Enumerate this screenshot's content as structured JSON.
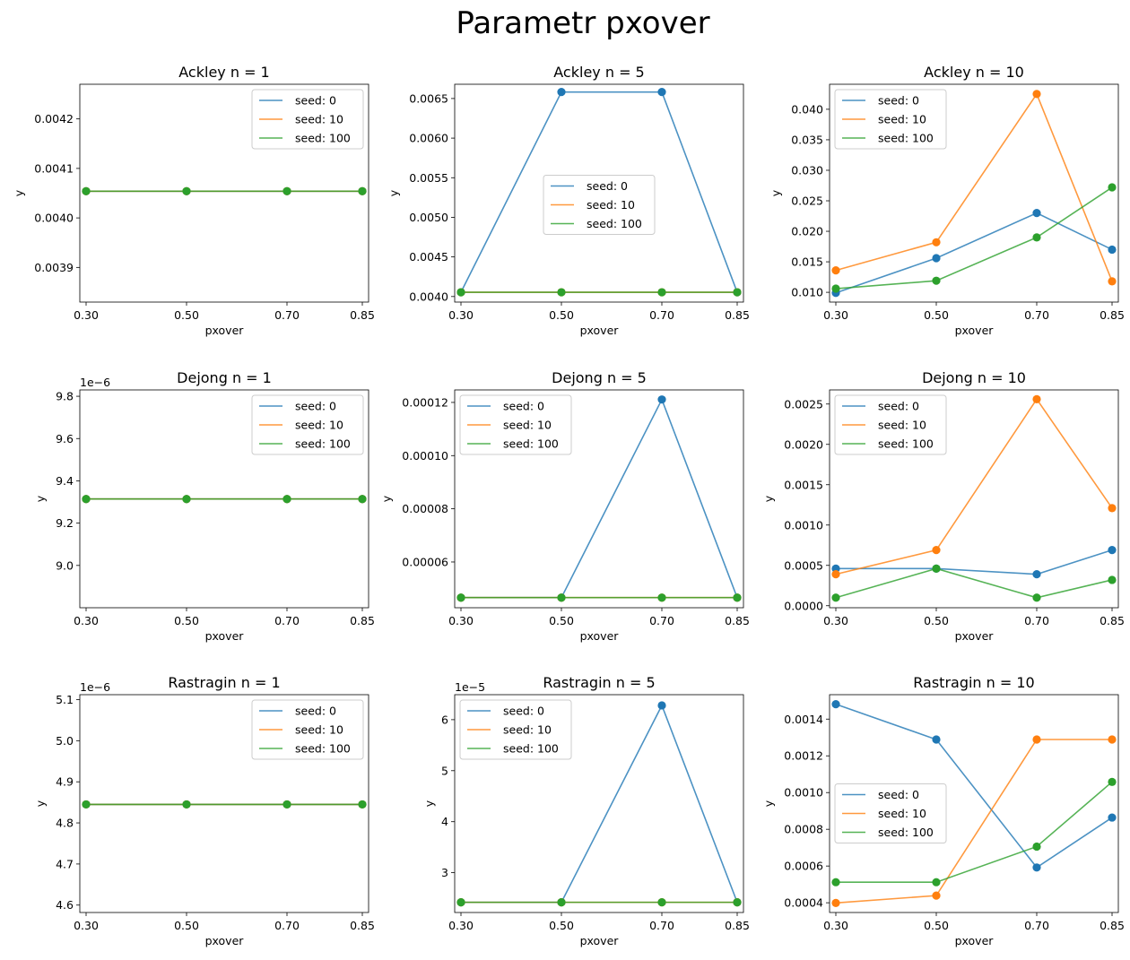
{
  "figure": {
    "title": "Parametr pxover"
  },
  "colors": {
    "seed0": "#1f77b4",
    "seed10": "#ff7f0e",
    "seed100": "#2ca02c"
  },
  "chart_data": [
    {
      "type": "line",
      "title": "Ackley n = 1",
      "xlabel": "pxover",
      "ylabel": "y",
      "x": [
        0.3,
        0.5,
        0.7,
        0.85
      ],
      "x_ticks": [
        "0.30",
        "0.50",
        "0.70",
        "0.85"
      ],
      "ylim": [
        0.00383,
        0.00427
      ],
      "y_ticks": [
        0.0039,
        0.004,
        0.0041,
        0.0042
      ],
      "y_tick_labels": [
        "0.0039",
        "0.0040",
        "0.0041",
        "0.0042"
      ],
      "offset": "",
      "legend_loc": "upper-right",
      "series": [
        {
          "name": "seed: 0",
          "values": [
            0.004054,
            0.004054,
            0.004054,
            0.004054
          ]
        },
        {
          "name": "seed: 10",
          "values": [
            0.004054,
            0.004054,
            0.004054,
            0.004054
          ]
        },
        {
          "name": "seed: 100",
          "values": [
            0.004054,
            0.004054,
            0.004054,
            0.004054
          ]
        }
      ]
    },
    {
      "type": "line",
      "title": "Ackley n = 5",
      "xlabel": "pxover",
      "ylabel": "y",
      "x": [
        0.3,
        0.5,
        0.7,
        0.85
      ],
      "x_ticks": [
        "0.30",
        "0.50",
        "0.70",
        "0.85"
      ],
      "ylim": [
        0.00393,
        0.00668
      ],
      "y_ticks": [
        0.004,
        0.0045,
        0.005,
        0.0055,
        0.006,
        0.0065
      ],
      "y_tick_labels": [
        "0.0040",
        "0.0045",
        "0.0050",
        "0.0055",
        "0.0060",
        "0.0065"
      ],
      "offset": "",
      "legend_loc": "center",
      "series": [
        {
          "name": "seed: 0",
          "values": [
            0.004054,
            0.006582,
            0.006582,
            0.004054
          ]
        },
        {
          "name": "seed: 10",
          "values": [
            0.004054,
            0.004054,
            0.004054,
            0.004054
          ]
        },
        {
          "name": "seed: 100",
          "values": [
            0.004054,
            0.004054,
            0.004054,
            0.004054
          ]
        }
      ]
    },
    {
      "type": "line",
      "title": "Ackley n = 10",
      "xlabel": "pxover",
      "ylabel": "y",
      "x": [
        0.3,
        0.5,
        0.7,
        0.85
      ],
      "x_ticks": [
        "0.30",
        "0.50",
        "0.70",
        "0.85"
      ],
      "ylim": [
        0.0084,
        0.0441
      ],
      "y_ticks": [
        0.01,
        0.015,
        0.02,
        0.025,
        0.03,
        0.035,
        0.04
      ],
      "y_tick_labels": [
        "0.010",
        "0.015",
        "0.020",
        "0.025",
        "0.030",
        "0.035",
        "0.040"
      ],
      "offset": "",
      "legend_loc": "upper-left",
      "series": [
        {
          "name": "seed: 0",
          "values": [
            0.0099,
            0.0156,
            0.023,
            0.017
          ]
        },
        {
          "name": "seed: 10",
          "values": [
            0.0136,
            0.0182,
            0.0425,
            0.0118
          ]
        },
        {
          "name": "seed: 100",
          "values": [
            0.0106,
            0.0119,
            0.019,
            0.0272
          ]
        }
      ]
    },
    {
      "type": "line",
      "title": "Dejong n = 1",
      "xlabel": "pxover",
      "ylabel": "y",
      "x": [
        0.3,
        0.5,
        0.7,
        0.85
      ],
      "x_ticks": [
        "0.30",
        "0.50",
        "0.70",
        "0.85"
      ],
      "ylim": [
        8.8e-06,
        9.83e-06
      ],
      "y_ticks": [
        9e-06,
        9.2e-06,
        9.4e-06,
        9.6e-06,
        9.8e-06
      ],
      "y_tick_labels": [
        "9.0",
        "9.2",
        "9.4",
        "9.6",
        "9.8"
      ],
      "offset": "1e−6",
      "legend_loc": "upper-right",
      "series": [
        {
          "name": "seed: 0",
          "values": [
            9.314e-06,
            9.314e-06,
            9.314e-06,
            9.314e-06
          ]
        },
        {
          "name": "seed: 10",
          "values": [
            9.314e-06,
            9.314e-06,
            9.314e-06,
            9.314e-06
          ]
        },
        {
          "name": "seed: 100",
          "values": [
            9.314e-06,
            9.314e-06,
            9.314e-06,
            9.314e-06
          ]
        }
      ]
    },
    {
      "type": "line",
      "title": "Dejong n = 5",
      "xlabel": "pxover",
      "ylabel": "y",
      "x": [
        0.3,
        0.5,
        0.7,
        0.85
      ],
      "x_ticks": [
        "0.30",
        "0.50",
        "0.70",
        "0.85"
      ],
      "ylim": [
        4.28e-05,
        0.0001247
      ],
      "y_ticks": [
        6e-05,
        8e-05,
        0.0001,
        0.00012
      ],
      "y_tick_labels": [
        "0.00006",
        "0.00008",
        "0.00010",
        "0.00012"
      ],
      "offset": "",
      "legend_loc": "upper-left",
      "series": [
        {
          "name": "seed: 0",
          "values": [
            4.66e-05,
            4.66e-05,
            0.0001211,
            4.66e-05
          ]
        },
        {
          "name": "seed: 10",
          "values": [
            4.66e-05,
            4.66e-05,
            4.66e-05,
            4.66e-05
          ]
        },
        {
          "name": "seed: 100",
          "values": [
            4.66e-05,
            4.66e-05,
            4.66e-05,
            4.66e-05
          ]
        }
      ]
    },
    {
      "type": "line",
      "title": "Dejong n = 10",
      "xlabel": "pxover",
      "ylabel": "y",
      "x": [
        0.3,
        0.5,
        0.7,
        0.85
      ],
      "x_ticks": [
        "0.30",
        "0.50",
        "0.70",
        "0.85"
      ],
      "ylim": [
        -2.5e-05,
        0.002675
      ],
      "y_ticks": [
        0.0,
        0.0005,
        0.001,
        0.0015,
        0.002,
        0.0025
      ],
      "y_tick_labels": [
        "0.0000",
        "0.0005",
        "0.0010",
        "0.0015",
        "0.0020",
        "0.0025"
      ],
      "offset": "",
      "legend_loc": "upper-left",
      "series": [
        {
          "name": "seed: 0",
          "values": [
            0.00046,
            0.00046,
            0.00039,
            0.00069
          ]
        },
        {
          "name": "seed: 10",
          "values": [
            0.00039,
            0.00069,
            0.00256,
            0.00121
          ]
        },
        {
          "name": "seed: 100",
          "values": [
            0.0001,
            0.00046,
            0.0001,
            0.00032
          ]
        }
      ]
    },
    {
      "type": "line",
      "title": "Rastragin n = 1",
      "xlabel": "pxover",
      "ylabel": "y",
      "x": [
        0.3,
        0.5,
        0.7,
        0.85
      ],
      "x_ticks": [
        "0.30",
        "0.50",
        "0.70",
        "0.85"
      ],
      "ylim": [
        4.582e-06,
        5.112e-06
      ],
      "y_ticks": [
        4.6e-06,
        4.7e-06,
        4.8e-06,
        4.9e-06,
        5e-06,
        5.1e-06
      ],
      "y_tick_labels": [
        "4.6",
        "4.7",
        "4.8",
        "4.9",
        "5.0",
        "5.1"
      ],
      "offset": "1e−6",
      "legend_loc": "upper-right",
      "series": [
        {
          "name": "seed: 0",
          "values": [
            4.845e-06,
            4.845e-06,
            4.845e-06,
            4.845e-06
          ]
        },
        {
          "name": "seed: 10",
          "values": [
            4.845e-06,
            4.845e-06,
            4.845e-06,
            4.845e-06
          ]
        },
        {
          "name": "seed: 100",
          "values": [
            4.845e-06,
            4.845e-06,
            4.845e-06,
            4.845e-06
          ]
        }
      ]
    },
    {
      "type": "line",
      "title": "Rastragin n = 5",
      "xlabel": "pxover",
      "ylabel": "y",
      "x": [
        0.3,
        0.5,
        0.7,
        0.85
      ],
      "x_ticks": [
        "0.30",
        "0.50",
        "0.70",
        "0.85"
      ],
      "ylim": [
        2.22e-05,
        6.49e-05
      ],
      "y_ticks": [
        3e-05,
        4e-05,
        5e-05,
        6e-05
      ],
      "y_tick_labels": [
        "3",
        "4",
        "5",
        "6"
      ],
      "offset": "1e−5",
      "legend_loc": "upper-left",
      "series": [
        {
          "name": "seed: 0",
          "values": [
            2.42e-05,
            2.42e-05,
            6.28e-05,
            2.42e-05
          ]
        },
        {
          "name": "seed: 10",
          "values": [
            2.42e-05,
            2.42e-05,
            2.42e-05,
            2.42e-05
          ]
        },
        {
          "name": "seed: 100",
          "values": [
            2.42e-05,
            2.42e-05,
            2.42e-05,
            2.42e-05
          ]
        }
      ]
    },
    {
      "type": "line",
      "title": "Rastragin n = 10",
      "xlabel": "pxover",
      "ylabel": "y",
      "x": [
        0.3,
        0.5,
        0.7,
        0.85
      ],
      "x_ticks": [
        "0.30",
        "0.50",
        "0.70",
        "0.85"
      ],
      "ylim": [
        0.000347,
        0.001533
      ],
      "y_ticks": [
        0.0004,
        0.0006,
        0.0008,
        0.001,
        0.0012,
        0.0014
      ],
      "y_tick_labels": [
        "0.0004",
        "0.0006",
        "0.0008",
        "0.0010",
        "0.0012",
        "0.0014"
      ],
      "offset": "",
      "legend_loc": "center-left",
      "series": [
        {
          "name": "seed: 0",
          "values": [
            0.001481,
            0.001289,
            0.000592,
            0.000864
          ]
        },
        {
          "name": "seed: 10",
          "values": [
            0.000399,
            0.000439,
            0.001289,
            0.001289
          ]
        },
        {
          "name": "seed: 100",
          "values": [
            0.000512,
            0.000512,
            0.000706,
            0.001058
          ]
        }
      ]
    }
  ]
}
